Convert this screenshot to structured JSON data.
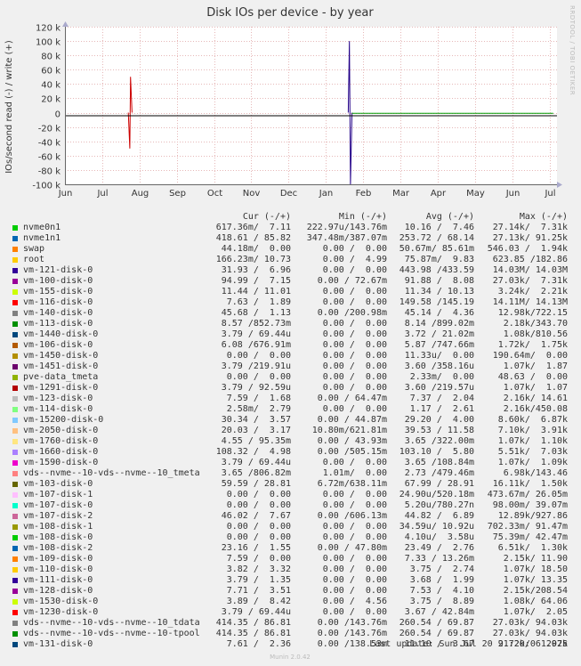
{
  "chart_data": {
    "type": "line",
    "title": "Disk IOs per device - by year",
    "ylabel": "IOs/second read (-) / write (+)",
    "ylim": [
      -100000,
      120000
    ],
    "yticks": [
      {
        "v": 120000,
        "label": "120 k"
      },
      {
        "v": 100000,
        "label": "100 k"
      },
      {
        "v": 80000,
        "label": "80 k"
      },
      {
        "v": 60000,
        "label": "60 k"
      },
      {
        "v": 40000,
        "label": "40 k"
      },
      {
        "v": 20000,
        "label": "20 k"
      },
      {
        "v": 0,
        "label": "0"
      },
      {
        "v": -20000,
        "label": "-20 k"
      },
      {
        "v": -40000,
        "label": "-40 k"
      },
      {
        "v": -60000,
        "label": "-60 k"
      },
      {
        "v": -80000,
        "label": "-80 k"
      },
      {
        "v": -100000,
        "label": "-100 k"
      }
    ],
    "xlim": [
      0,
      13.2
    ],
    "xticks": [
      {
        "v": 0,
        "label": "Jun"
      },
      {
        "v": 1,
        "label": "Jul"
      },
      {
        "v": 2,
        "label": "Aug"
      },
      {
        "v": 3,
        "label": "Sep"
      },
      {
        "v": 4,
        "label": "Oct"
      },
      {
        "v": 5,
        "label": "Nov"
      },
      {
        "v": 6,
        "label": "Dec"
      },
      {
        "v": 7,
        "label": "Jan"
      },
      {
        "v": 8,
        "label": "Feb"
      },
      {
        "v": 9,
        "label": "Mar"
      },
      {
        "v": 10,
        "label": "Apr"
      },
      {
        "v": 11,
        "label": "May"
      },
      {
        "v": 12,
        "label": "Jun"
      },
      {
        "v": 13,
        "label": "Jul"
      }
    ],
    "series": [
      {
        "color": "#cc0000",
        "points": [
          [
            1.7,
            0
          ],
          [
            1.74,
            -50000
          ],
          [
            1.76,
            50000
          ],
          [
            1.8,
            0
          ]
        ]
      },
      {
        "color": "#220088",
        "points": [
          [
            7.6,
            0
          ],
          [
            7.63,
            100000
          ],
          [
            7.66,
            -100000
          ],
          [
            7.7,
            0
          ]
        ]
      },
      {
        "color": "#009900",
        "points": [
          [
            7.7,
            -800
          ],
          [
            13.1,
            -800
          ]
        ]
      }
    ],
    "side_text": "RRDTOOL / TOBI OETIKER",
    "footer": "Munin 2.0.42"
  },
  "legend": {
    "headers": [
      "Cur (-/+)",
      "Min (-/+)",
      "Avg (-/+)",
      "Max (-/+)"
    ],
    "rows": [
      {
        "name": "nvme0n1",
        "color": "#00cc00",
        "cur": "617.36m/  7.11",
        "min": "222.97u/143.76m",
        "avg": "10.16 /  7.46",
        "max": "27.14k/  7.31k"
      },
      {
        "name": "nvme1n1",
        "color": "#0066b3",
        "cur": "418.61 / 85.82",
        "min": "347.48m/387.07m",
        "avg": "253.72 / 68.14",
        "max": "27.13k/ 91.25k"
      },
      {
        "name": "swap",
        "color": "#ff8000",
        "cur": "44.18m/  0.00",
        "min": "0.00 /  0.00",
        "avg": "50.67m/ 85.61m",
        "max": "546.03 /  1.94k"
      },
      {
        "name": "root",
        "color": "#ffcc00",
        "cur": "166.23m/ 10.73",
        "min": "0.00 /  4.99",
        "avg": "75.87m/  9.83",
        "max": "623.85 /182.86"
      },
      {
        "name": "vm-121-disk-0",
        "color": "#330099",
        "cur": "31.93 /  6.96",
        "min": "0.00 /  0.00",
        "avg": "443.98 /433.59",
        "max": "14.03M/ 14.03M"
      },
      {
        "name": "vm-100-disk-0",
        "color": "#990099",
        "cur": "94.99 /  7.15",
        "min": "0.00 / 72.67m",
        "avg": "91.88 /  8.08",
        "max": "27.03k/  7.31k"
      },
      {
        "name": "vm-155-disk-0",
        "color": "#ccff00",
        "cur": "11.44 / 11.01",
        "min": "0.00 /  0.00",
        "avg": "11.34 / 10.13",
        "max": "3.24k/  2.21k"
      },
      {
        "name": "vm-116-disk-0",
        "color": "#ff0000",
        "cur": "7.63 /  1.89",
        "min": "0.00 /  0.00",
        "avg": "149.58 /145.19",
        "max": "14.11M/ 14.13M"
      },
      {
        "name": "vm-140-disk-0",
        "color": "#808080",
        "cur": "45.68 /  1.13",
        "min": "0.00 /200.98m",
        "avg": "45.14 /  4.36",
        "max": "12.98k/722.15"
      },
      {
        "name": "vm-113-disk-0",
        "color": "#008f00",
        "cur": "8.57 /852.73m",
        "min": "0.00 /  0.00",
        "avg": "8.14 /899.02m",
        "max": "2.18k/343.70"
      },
      {
        "name": "vm-1440-disk-0",
        "color": "#00487d",
        "cur": "3.79 / 69.44u",
        "min": "0.00 /  0.00",
        "avg": "3.72 / 21.02m",
        "max": "1.08k/810.56"
      },
      {
        "name": "vm-106-disk-0",
        "color": "#b35a00",
        "cur": "6.08 /676.91m",
        "min": "0.00 /  0.00",
        "avg": "5.87 /747.66m",
        "max": "1.72k/  1.75k"
      },
      {
        "name": "vm-1450-disk-0",
        "color": "#b38f00",
        "cur": "0.00 /  0.00",
        "min": "0.00 /  0.00",
        "avg": "11.33u/  0.00",
        "max": "190.64m/  0.00"
      },
      {
        "name": "vm-1451-disk-0",
        "color": "#6b006b",
        "cur": "3.79 /219.91u",
        "min": "0.00 /  0.00",
        "avg": "3.60 /358.16u",
        "max": "1.07k/  1.87"
      },
      {
        "name": "pve-data_tmeta",
        "color": "#8fb300",
        "cur": "0.00 /  0.00",
        "min": "0.00 /  0.00",
        "avg": "2.33m/  0.00",
        "max": "48.63 /  0.00"
      },
      {
        "name": "vm-1291-disk-0",
        "color": "#b30000",
        "cur": "3.79 / 92.59u",
        "min": "0.00 /  0.00",
        "avg": "3.60 /219.57u",
        "max": "1.07k/  1.07"
      },
      {
        "name": "vm-123-disk-0",
        "color": "#bebebe",
        "cur": "7.59 /  1.68",
        "min": "0.00 / 64.47m",
        "avg": "7.37 /  2.04",
        "max": "2.16k/ 14.61"
      },
      {
        "name": "vm-114-disk-0",
        "color": "#80ff80",
        "cur": "2.58m/  2.79",
        "min": "0.00 /  0.00",
        "avg": "1.17 /  2.61",
        "max": "2.16k/450.08"
      },
      {
        "name": "vm-15200-disk-0",
        "color": "#80c9ff",
        "cur": "30.34 /  3.57",
        "min": "0.00 / 44.87m",
        "avg": "29.20 /  4.00",
        "max": "8.60k/  6.87k"
      },
      {
        "name": "vm-2050-disk-0",
        "color": "#ffc080",
        "cur": "20.03 /  3.17",
        "min": "10.80m/621.81m",
        "avg": "39.53 / 11.58",
        "max": "7.10k/  3.91k"
      },
      {
        "name": "vm-1760-disk-0",
        "color": "#ffe680",
        "cur": "4.55 / 95.35m",
        "min": "0.00 / 43.93m",
        "avg": "3.65 /322.00m",
        "max": "1.07k/  1.10k"
      },
      {
        "name": "vm-1660-disk-0",
        "color": "#aa80ff",
        "cur": "108.32 /  4.98",
        "min": "0.00 /505.15m",
        "avg": "103.10 /  5.80",
        "max": "5.51k/  7.03k"
      },
      {
        "name": "vm-1590-disk-0",
        "color": "#ee00cc",
        "cur": "3.79 / 69.44u",
        "min": "0.00 /  0.00",
        "avg": "3.65 /108.84m",
        "max": "1.07k/  1.09k"
      },
      {
        "name": "vds--nvme--10-vds--nvme--10_tmeta",
        "color": "#ff8080",
        "cur": "3.65 /806.82m",
        "min": "1.01m/  0.00",
        "avg": "2.73 /479.46m",
        "max": "6.98k/143.46"
      },
      {
        "name": "vm-103-disk-0",
        "color": "#666600",
        "cur": "59.59 / 28.81",
        "min": "6.72m/638.11m",
        "avg": "67.99 / 28.91",
        "max": "16.11k/  1.50k"
      },
      {
        "name": "vm-107-disk-1",
        "color": "#ffbfff",
        "cur": "0.00 /  0.00",
        "min": "0.00 /  0.00",
        "avg": "24.90u/520.18m",
        "max": "473.67m/ 26.05m"
      },
      {
        "name": "vm-107-disk-0",
        "color": "#00ffcc",
        "cur": "0.00 /  0.00",
        "min": "0.00 /  0.00",
        "avg": "5.20u/780.27n",
        "max": "98.00m/ 39.07m"
      },
      {
        "name": "vm-107-disk-2",
        "color": "#cc6699",
        "cur": "46.02 /  7.67",
        "min": "0.00 /606.13m",
        "avg": "44.82 /  6.89",
        "max": "12.89k/927.86"
      },
      {
        "name": "vm-108-disk-1",
        "color": "#999900",
        "cur": "0.00 /  0.00",
        "min": "0.00 /  0.00",
        "avg": "34.59u/ 10.92u",
        "max": "702.33m/ 91.47m"
      },
      {
        "name": "vm-108-disk-0",
        "color": "#00cc00",
        "cur": "0.00 /  0.00",
        "min": "0.00 /  0.00",
        "avg": "4.10u/  3.58u",
        "max": "75.39m/ 42.47m"
      },
      {
        "name": "vm-108-disk-2",
        "color": "#0066b3",
        "cur": "23.16 /  1.55",
        "min": "0.00 / 47.80m",
        "avg": "23.49 /  2.76",
        "max": "6.51k/  1.30k"
      },
      {
        "name": "vm-109-disk-0",
        "color": "#ff8000",
        "cur": "7.59 /  0.00",
        "min": "0.00 /  0.00",
        "avg": "7.33 / 13.26m",
        "max": "2.15k/ 11.90"
      },
      {
        "name": "vm-110-disk-0",
        "color": "#ffcc00",
        "cur": "3.82 /  3.32",
        "min": "0.00 /  0.00",
        "avg": "3.75 /  2.74",
        "max": "1.07k/ 18.50"
      },
      {
        "name": "vm-111-disk-0",
        "color": "#330099",
        "cur": "3.79 /  1.35",
        "min": "0.00 /  0.00",
        "avg": "3.68 /  1.99",
        "max": "1.07k/ 13.35"
      },
      {
        "name": "vm-128-disk-0",
        "color": "#990099",
        "cur": "7.71 /  3.51",
        "min": "0.00 /  0.00",
        "avg": "7.53 /  4.10",
        "max": "2.15k/208.54"
      },
      {
        "name": "vm-1530-disk-0",
        "color": "#ccff00",
        "cur": "3.89 /  8.42",
        "min": "0.00 /  4.56",
        "avg": "3.75 /  8.89",
        "max": "1.08k/ 64.06"
      },
      {
        "name": "vm-1230-disk-0",
        "color": "#ff0000",
        "cur": "3.79 / 69.44u",
        "min": "0.00 /  0.00",
        "avg": "3.67 / 42.84m",
        "max": "1.07k/  2.05"
      },
      {
        "name": "vds--nvme--10-vds--nvme--10_tdata",
        "color": "#808080",
        "cur": "414.35 / 86.81",
        "min": "0.00 /143.76m",
        "avg": "260.54 / 69.87",
        "max": "27.03k/ 94.03k"
      },
      {
        "name": "vds--nvme--10-vds--nvme--10-tpool",
        "color": "#008f00",
        "cur": "414.35 / 86.81",
        "min": "0.00 /143.76m",
        "avg": "260.54 / 69.87",
        "max": "27.03k/ 94.03k"
      },
      {
        "name": "vm-131-disk-0",
        "color": "#00487d",
        "cur": "7.61 /  2.36",
        "min": "0.00 /138.53m",
        "avg": "11.10 /  3.67",
        "max": "9.72k/  1.97k"
      }
    ],
    "last_update": "Last update:  Sun Jul 20 21:20:06 2025"
  }
}
